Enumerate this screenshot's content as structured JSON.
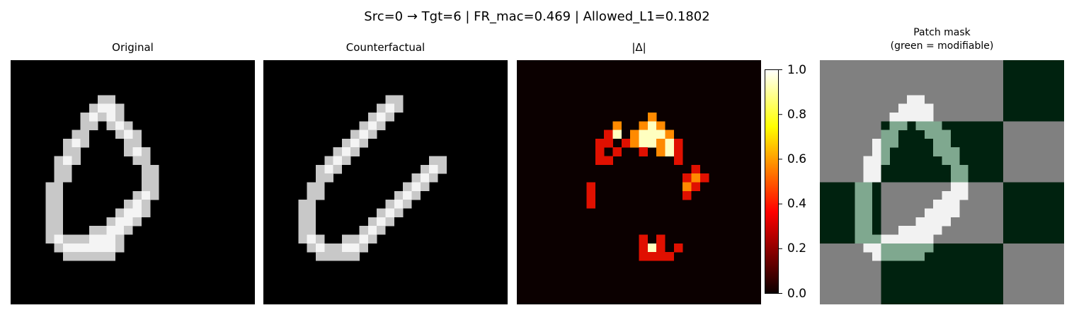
{
  "figure": {
    "suptitle": "Src=0 → Tgt=6 | FR_mac=0.469 | Allowed_L1=0.1802"
  },
  "panels": [
    {
      "title": "Original"
    },
    {
      "title": "Counterfactual"
    },
    {
      "title": "|Δ|"
    },
    {
      "title": "Patch mask\n(green = modifiable)"
    }
  ],
  "chart_data": {
    "type": "heatmap",
    "image_size": [
      28,
      28
    ],
    "colorbar": {
      "colormap": "hot",
      "range": [
        0.0,
        1.0
      ],
      "ticks": [
        "0.0",
        "0.2",
        "0.4",
        "0.6",
        "0.8",
        "1.0"
      ]
    },
    "patch_mask": {
      "grid": [
        4,
        4
      ],
      "modifiable_color": "#00220f",
      "masked_color": "#808080",
      "modifiable": [
        [
          0,
          0,
          0,
          1
        ],
        [
          0,
          1,
          1,
          0
        ],
        [
          1,
          0,
          0,
          1
        ],
        [
          0,
          1,
          1,
          0
        ]
      ]
    },
    "original": [
      "............................",
      "............................",
      "............................",
      "............................",
      "..........##................",
      ".........####...............",
      "........#####...............",
      "........##.###..............",
      ".......##...###.............",
      "......###....##.............",
      "......##.....###............",
      ".....###......##............",
      ".....##........##...........",
      ".....##........##...........",
      "....##.........##...........",
      "....##........###...........",
      "....##.......###............",
      "....##......####............",
      "....##.....####.............",
      "....##...#####..............",
      "....#########...............",
      ".....########...............",
      "......######................",
      "............................",
      "............................",
      "............................",
      "............................",
      "............................"
    ],
    "counterfactual": [
      "............................",
      "............................",
      "............................",
      "............................",
      "..............##............",
      ".............###............",
      "............###.............",
      "...........###..............",
      "..........###...............",
      ".........###................",
      "........###.................",
      ".......###.........##.......",
      "......###.........###.......",
      "......##.........###........",
      ".....##.........###.........",
      ".....##........###..........",
      "....##........###...........",
      "....##.......###............",
      "....##......###.............",
      "....##.....###..............",
      "....###..####...............",
      ".....#######................",
      "......#####.................",
      "............................",
      "............................",
      "............................",
      "............................",
      "............................"
    ],
    "delta": [
      "............................",
      "............................",
      "............................",
      "............................",
      "............................",
      "............................",
      "...............h............",
      "...........h..hwh...........",
      "..........mw.hwwwh..........",
      ".........mm.mhwwhwm.........",
      ".........m.m..m.hwm.........",
      ".........mm.......m.........",
      "....................m.......",
      "...................mhm......",
      "........m..........hm.......",
      "........m..........m........",
      "........m...................",
      "............................",
      "............................",
      "............................",
      "..............m.m...........",
      "..............mwm.m.........",
      "..............mmmm..........",
      "............................",
      "............................",
      "............................",
      "............................",
      "............................"
    ]
  }
}
